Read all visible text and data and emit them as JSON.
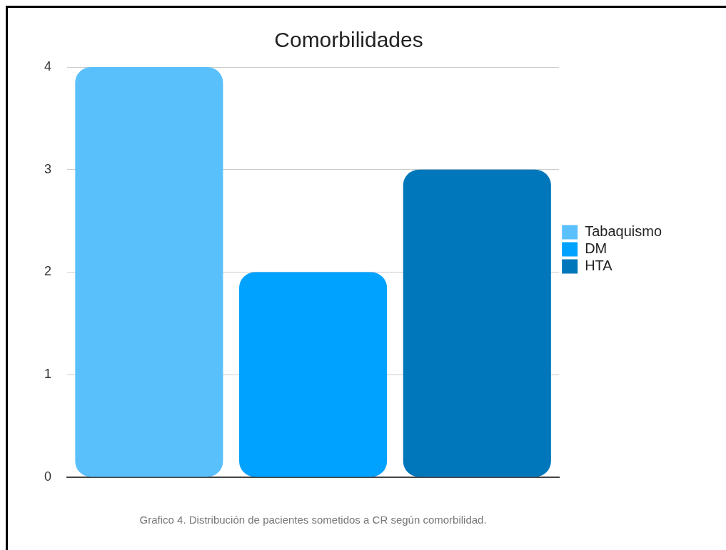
{
  "chart_data": {
    "type": "bar",
    "title": "Comorbilidades",
    "categories": [
      null,
      null,
      null
    ],
    "series": [
      {
        "name": "Tabaquismo",
        "color": "#5ac0fb",
        "values": [
          4,
          null,
          null
        ]
      },
      {
        "name": "DM",
        "color": "#00a2ff",
        "values": [
          null,
          2,
          null
        ]
      },
      {
        "name": "HTA",
        "color": "#0077bb",
        "values": [
          null,
          null,
          3
        ]
      }
    ],
    "ylim": [
      0,
      4
    ],
    "yticks": [
      0,
      1,
      2,
      3,
      4
    ],
    "grid": "y",
    "legend": "right",
    "tick_labels": "y",
    "annotations": [
      "Grafico 4. Distribución de pacientes sometidos a CR según comorbilidad."
    ]
  }
}
